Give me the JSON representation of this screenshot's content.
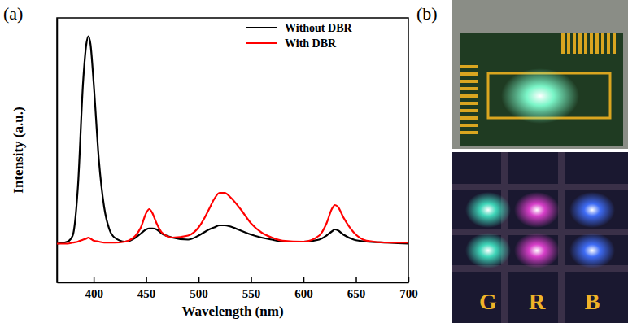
{
  "chart_data": {
    "type": "line",
    "panel_label": "(a)",
    "x_label": "Wavelength (nm)",
    "y_label": "Intensity (a.u.)",
    "x": [
      365,
      375,
      380,
      385,
      390,
      393,
      395,
      397,
      400,
      405,
      410,
      415,
      420,
      430,
      440,
      445,
      450,
      453,
      456,
      460,
      465,
      475,
      490,
      500,
      505,
      510,
      515,
      520,
      525,
      530,
      540,
      550,
      560,
      570,
      580,
      600,
      615,
      622,
      627,
      630,
      633,
      638,
      648,
      660,
      680,
      700
    ],
    "series": [
      {
        "name": "Without DBR",
        "color": "#000000",
        "line_style": "solid",
        "values": [
          0.19,
          0.2,
          0.23,
          0.47,
          0.99,
          1.17,
          1.21,
          1.17,
          0.98,
          0.6,
          0.37,
          0.26,
          0.22,
          0.2,
          0.22,
          0.24,
          0.26,
          0.265,
          0.265,
          0.26,
          0.24,
          0.22,
          0.21,
          0.23,
          0.245,
          0.26,
          0.27,
          0.28,
          0.28,
          0.275,
          0.255,
          0.235,
          0.22,
          0.21,
          0.2,
          0.2,
          0.21,
          0.23,
          0.25,
          0.26,
          0.255,
          0.235,
          0.21,
          0.2,
          0.195,
          0.19
        ]
      },
      {
        "name": "With DBR",
        "color": "#ff0000",
        "line_style": "solid",
        "values": [
          0.19,
          0.19,
          0.195,
          0.2,
          0.21,
          0.215,
          0.22,
          0.215,
          0.205,
          0.2,
          0.195,
          0.195,
          0.195,
          0.2,
          0.23,
          0.27,
          0.34,
          0.36,
          0.34,
          0.29,
          0.245,
          0.22,
          0.23,
          0.27,
          0.31,
          0.36,
          0.41,
          0.44,
          0.44,
          0.42,
          0.36,
          0.29,
          0.245,
          0.22,
          0.205,
          0.2,
          0.23,
          0.29,
          0.36,
          0.38,
          0.37,
          0.32,
          0.245,
          0.205,
          0.195,
          0.195
        ]
      }
    ],
    "xlim": [
      365,
      700
    ],
    "xticks": [
      400,
      450,
      500,
      550,
      600,
      650,
      700
    ],
    "ylim": [
      0,
      1.3
    ],
    "tick_labels": "x",
    "legend": "upper right",
    "grid": false
  },
  "photo_panel": {
    "label": "(b)",
    "labels": [
      "G",
      "R",
      "B"
    ]
  }
}
